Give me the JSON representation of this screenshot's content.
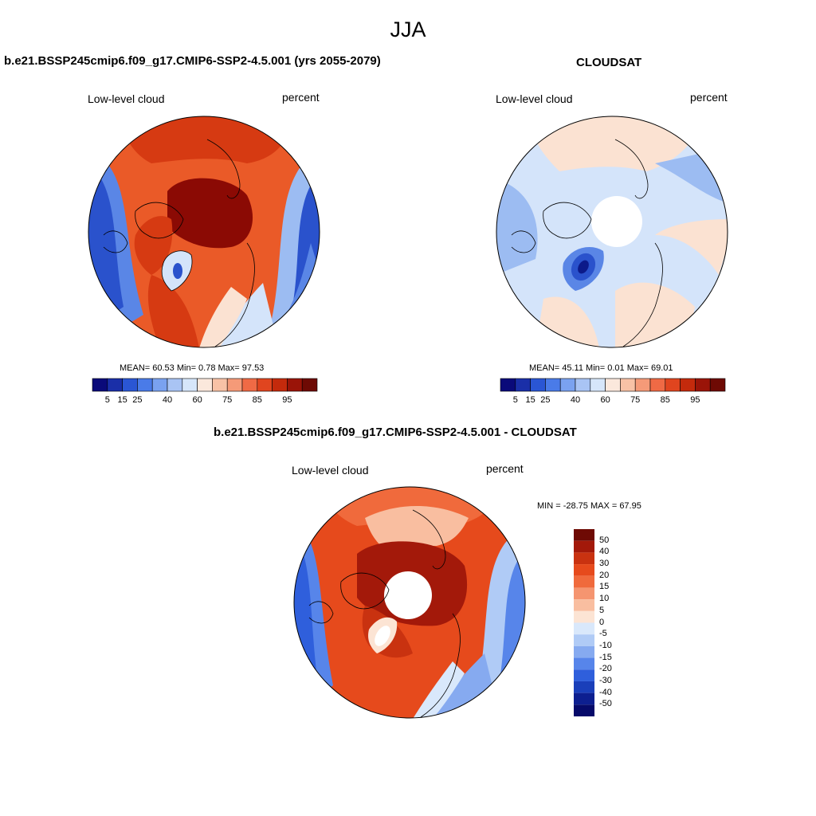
{
  "title": "JJA",
  "panels": [
    {
      "title": "b.e21.BSSP245cmip6.f09_g17.CMIP6-SSP2-4.5.001 (yrs 2055-2079)",
      "left_label": "Low-level cloud",
      "right_label": "percent",
      "stats": "MEAN=  60.53  Min=   0.78  Max=  97.53"
    },
    {
      "title": "CLOUDSAT",
      "left_label": "Low-level cloud",
      "right_label": "percent",
      "stats": "MEAN=  45.11  Min=   0.01  Max=  69.01"
    },
    {
      "title": "b.e21.BSSP245cmip6.f09_g17.CMIP6-SSP2-4.5.001 - CLOUDSAT",
      "left_label": "Low-level cloud",
      "right_label": "percent",
      "stats": "MIN = -28.75 MAX =  67.95"
    }
  ],
  "abs_colorbar": {
    "colors": [
      "#0a0a7a",
      "#1a2fa8",
      "#2a56d4",
      "#4a7be8",
      "#7aa2f0",
      "#a9c4f4",
      "#d6e6fa",
      "#fbe8dc",
      "#f8c2a6",
      "#f59a78",
      "#ef6a45",
      "#e0451f",
      "#c42a0c",
      "#9a1408",
      "#6e0a04"
    ],
    "tick_labels": [
      "5",
      "15",
      "25",
      "40",
      "60",
      "75",
      "85",
      "95"
    ]
  },
  "diff_colorbar": {
    "colors": [
      "#6e0a04",
      "#a3190a",
      "#c93210",
      "#e64a1c",
      "#f06a3c",
      "#f59570",
      "#f9bea0",
      "#fce4d4",
      "#d9e8fb",
      "#b0cbf6",
      "#86aaf0",
      "#5785ea",
      "#2f5fdc",
      "#1a3fba",
      "#0d1f90",
      "#060a6a"
    ],
    "tick_labels": [
      "50",
      "40",
      "30",
      "20",
      "15",
      "10",
      "5",
      "0",
      "-5",
      "-10",
      "-15",
      "-20",
      "-30",
      "-40",
      "-50"
    ]
  },
  "map_colors": {
    "dark_red": "#8b0a04",
    "red": "#d63a12",
    "orange_red": "#ea5a28",
    "salmon": "#f4a080",
    "pale_peach": "#fbe2d2",
    "pale_blue": "#d4e4fa",
    "light_blue": "#9cbcf2",
    "mid_blue": "#5a86e6",
    "blue": "#2a52cc",
    "navy": "#0c1a8a"
  }
}
